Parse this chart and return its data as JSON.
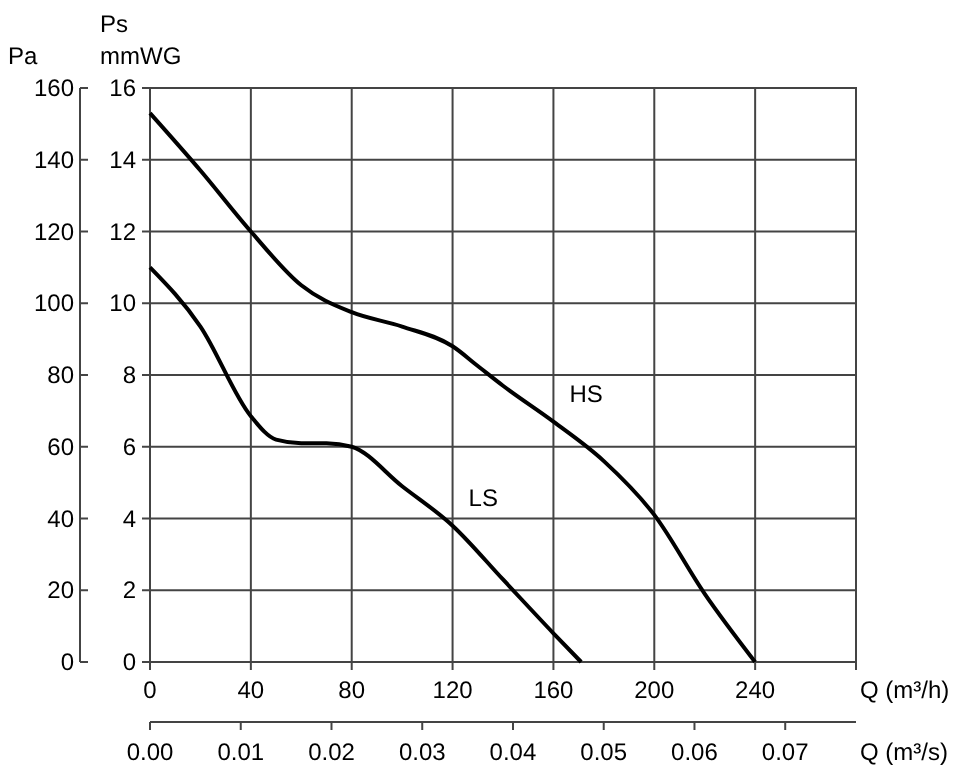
{
  "chart_data": {
    "type": "line",
    "xlabel": "Q (m³/h)",
    "x2label": "Q (m³/s)",
    "ylabel": "Pa",
    "y2label": "Ps\nmmWG",
    "xlim": [
      0,
      280
    ],
    "xticks": [
      0,
      40,
      80,
      120,
      160,
      200,
      240,
      {
        "value": 280,
        "label": null
      }
    ],
    "x2lim": [
      0,
      0.0778
    ],
    "x2ticks": [
      {
        "value": 0,
        "label": "0.00"
      },
      {
        "value": 0.01,
        "label": "0.01"
      },
      {
        "value": 0.02,
        "label": "0.02"
      },
      {
        "value": 0.03,
        "label": "0.03"
      },
      {
        "value": 0.04,
        "label": "0.04"
      },
      {
        "value": 0.05,
        "label": "0.05"
      },
      {
        "value": 0.06,
        "label": "0.06"
      },
      {
        "value": 0.07,
        "label": "0.07"
      }
    ],
    "ylim": [
      0,
      160
    ],
    "yticks": [
      0,
      20,
      40,
      60,
      80,
      100,
      120,
      140,
      160
    ],
    "y2lim": [
      0,
      16
    ],
    "y2ticks": [
      0,
      2,
      4,
      6,
      8,
      10,
      12,
      14,
      16
    ],
    "grid": true,
    "marker": "none",
    "line_style": "solid",
    "series": [
      {
        "name": "HS",
        "color": "#000000",
        "x": [
          0,
          20,
          40,
          60,
          80,
          100,
          120,
          130,
          140,
          160,
          180,
          200,
          220,
          240
        ],
        "values": [
          153,
          137,
          120,
          105,
          97.5,
          93.5,
          88,
          82.5,
          77,
          67,
          56,
          41,
          19,
          0
        ]
      },
      {
        "name": "LS",
        "color": "#000000",
        "x": [
          0,
          20,
          40,
          50,
          60,
          70,
          80,
          100,
          120,
          140,
          160,
          171
        ],
        "values": [
          110,
          93.5,
          68.5,
          62,
          61,
          61,
          60,
          49,
          38,
          23,
          8,
          0
        ]
      }
    ]
  }
}
